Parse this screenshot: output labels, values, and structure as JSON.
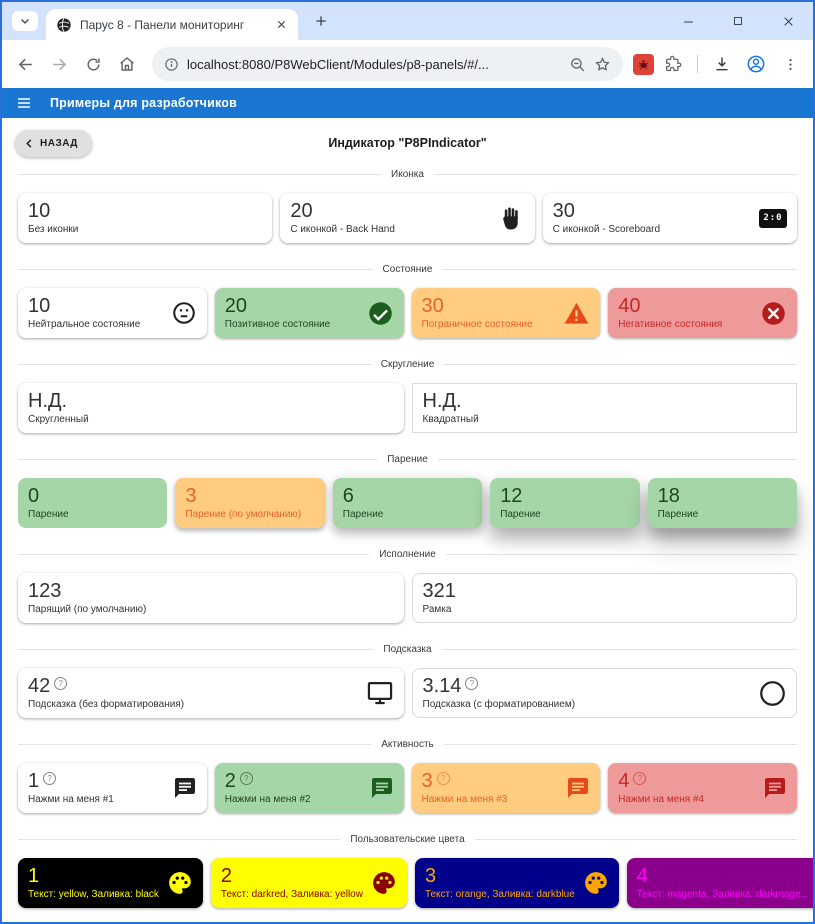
{
  "browser": {
    "tab_title": "Парус 8 - Панели мониторинг",
    "url": "localhost:8080/P8WebClient/Modules/p8-panels/#/..."
  },
  "appbar": {
    "title": "Примеры для разработчиков"
  },
  "colors": {
    "window_border": "#2a6fdb",
    "titlebar_bg": "#d3e3fd",
    "appbar_blue": "#1976d2",
    "profile_icon_blue": "#1a73e8",
    "extension_red": "#dd4437"
  },
  "icons": {
    "scoreboard_text": "2:0",
    "help_glyph": "?"
  },
  "page": {
    "back_label": "НАЗАД",
    "title": "Индикатор \"P8PIndicator\"",
    "palette": {
      "plain": {
        "bg": "#ffffff",
        "fg": "#333333",
        "icon": "#212121"
      },
      "green": {
        "bg": "#a5d6a7",
        "fg": "#1e4620",
        "icon": "#1b5e20"
      },
      "orange": {
        "bg": "#ffcc80",
        "fg": "#e8622a",
        "icon": "#e64a19"
      },
      "red": {
        "bg": "#ef9a9a",
        "fg": "#c62828",
        "icon": "#b71c1c"
      }
    },
    "sections": [
      {
        "label": "Иконка",
        "cards": [
          {
            "value": "10",
            "label": "Без иконки",
            "style": "plain"
          },
          {
            "value": "20",
            "label": "С иконкой - Back Hand",
            "icon": "back-hand",
            "style": "plain"
          },
          {
            "value": "30",
            "label": "С иконкой - Scoreboard",
            "icon": "scoreboard",
            "style": "plain"
          }
        ]
      },
      {
        "label": "Состояние",
        "cards": [
          {
            "value": "10",
            "label": "Нейтральное состояние",
            "icon": "sentiment-neutral",
            "style": "plain"
          },
          {
            "value": "20",
            "label": "Позитивное состояние",
            "icon": "check-circle",
            "style": "green"
          },
          {
            "value": "30",
            "label": "Пограничное состояние",
            "icon": "warning",
            "style": "orange"
          },
          {
            "value": "40",
            "label": "Негативное состояния",
            "icon": "cancel",
            "style": "red"
          }
        ]
      },
      {
        "label": "Скругление",
        "cards": [
          {
            "value": "Н.Д.",
            "label": "Скругленный",
            "style": "plain"
          },
          {
            "value": "Н.Д.",
            "label": "Квадратный",
            "style": "plain",
            "variant": "outlined",
            "square": true
          }
        ]
      },
      {
        "label": "Парение",
        "cards": [
          {
            "value": "0",
            "label": "Парение",
            "style": "green",
            "elevation": 0
          },
          {
            "value": "3",
            "label": "Парение (по умолчанию)",
            "style": "orange",
            "elevation": 3
          },
          {
            "value": "6",
            "label": "Парение",
            "style": "green",
            "elevation": 6
          },
          {
            "value": "12",
            "label": "Парение",
            "style": "green",
            "elevation": 12
          },
          {
            "value": "18",
            "label": "Парение",
            "style": "green",
            "elevation": 18
          }
        ]
      },
      {
        "label": "Исполнение",
        "cards": [
          {
            "value": "123",
            "label": "Парящий (по умолчанию)",
            "style": "plain"
          },
          {
            "value": "321",
            "label": "Рамка",
            "style": "plain",
            "variant": "outlined"
          }
        ]
      },
      {
        "label": "Подсказка",
        "cards": [
          {
            "value": "42",
            "help": true,
            "label": "Подсказка (без форматирования)",
            "icon": "monitor",
            "style": "plain"
          },
          {
            "value": "3.14",
            "help": true,
            "label": "Подсказка (с форматированием)",
            "icon": "circle-outline",
            "style": "plain",
            "variant": "outlined"
          }
        ]
      },
      {
        "label": "Активность",
        "cards": [
          {
            "value": "1",
            "help": true,
            "label": "Нажми на меня #1",
            "icon": "chat",
            "style": "plain",
            "interactable": true
          },
          {
            "value": "2",
            "help": true,
            "label": "Нажми на меня #2",
            "icon": "chat",
            "style": "green",
            "interactable": true
          },
          {
            "value": "3",
            "help": true,
            "label": "Нажми на меня #3",
            "icon": "chat",
            "style": "orange",
            "interactable": true
          },
          {
            "value": "4",
            "help": true,
            "label": "Нажми на меня #4",
            "icon": "chat",
            "style": "red",
            "interactable": true
          }
        ]
      },
      {
        "label": "Пользовательские цвета",
        "cards": [
          {
            "value": "1",
            "label": "Текст: yellow, Заливка: black",
            "icon": "palette",
            "colors": {
              "bg": "#000000",
              "fg": "#ffff00",
              "icon": "#ffff00"
            }
          },
          {
            "value": "2",
            "label": "Текст: darkred, Заливка: yellow",
            "icon": "palette",
            "colors": {
              "bg": "#ffff00",
              "fg": "#8b0000",
              "icon": "#8b0000"
            }
          },
          {
            "value": "3",
            "label": "Текст: orange, Заливка: darkblue",
            "icon": "palette",
            "colors": {
              "bg": "#00008b",
              "fg": "#ffa500",
              "icon": "#ffa500"
            }
          },
          {
            "value": "4",
            "label": "Текст: magenta, Заливка: darkmage...",
            "icon": "palette",
            "colors": {
              "bg": "#8b008b",
              "fg": "#ff00ff",
              "icon": "#ff00ff"
            }
          }
        ]
      }
    ]
  }
}
